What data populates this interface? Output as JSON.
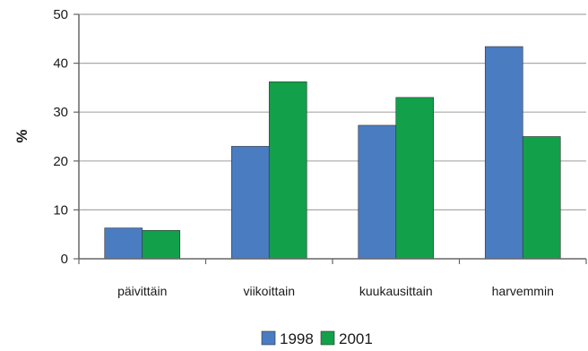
{
  "chart_data": {
    "type": "bar",
    "categories": [
      "päivittäin",
      "viikoittain",
      "kuukausittain",
      "harvemmin"
    ],
    "series": [
      {
        "name": "1998",
        "values": [
          6.3,
          23.0,
          27.3,
          43.4
        ],
        "color": "#4a7cc2"
      },
      {
        "name": "2001",
        "values": [
          5.8,
          36.2,
          33.0,
          25.0
        ],
        "color": "#13a04a"
      }
    ],
    "title": "",
    "xlabel": "",
    "ylabel": "%",
    "ylim": [
      0,
      50
    ],
    "yticks": [
      0,
      10,
      20,
      30,
      40,
      50
    ],
    "grid": true,
    "legend_position": "bottom"
  }
}
